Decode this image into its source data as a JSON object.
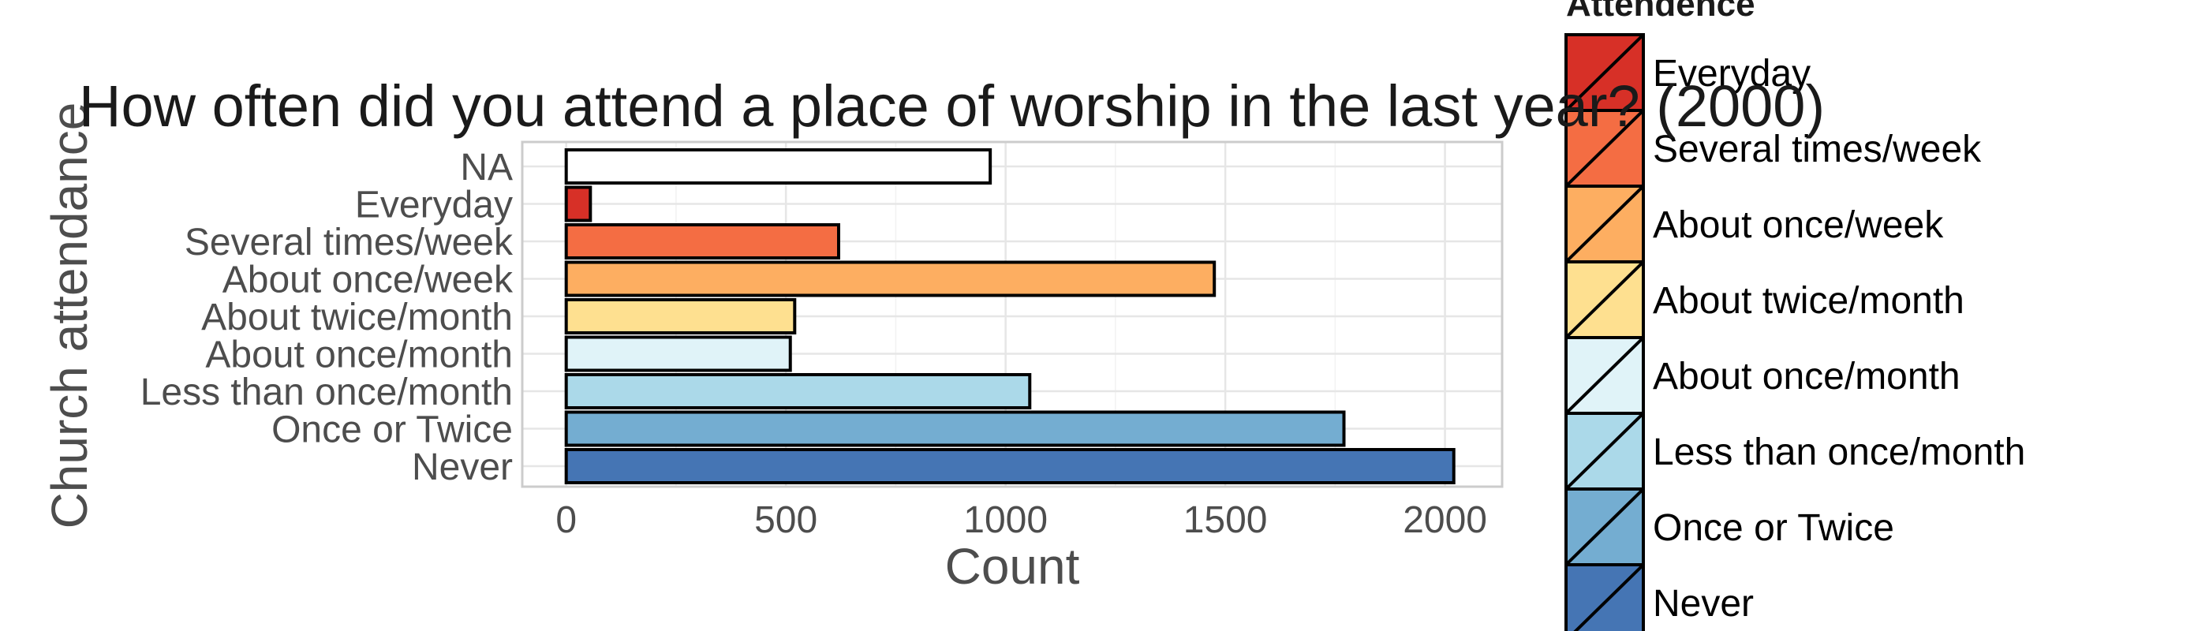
{
  "chart_data": {
    "type": "bar",
    "orientation": "horizontal",
    "title": "How often did you attend a place of worship in the last year? (2000)",
    "xlabel": "Count",
    "ylabel": "Church attendance",
    "categories": [
      "Never",
      "Once or Twice",
      "Less than once/month",
      "About once/month",
      "About twice/month",
      "About once/week",
      "Several times/week",
      "Everyday",
      "NA"
    ],
    "values": [
      2020,
      1770,
      1055,
      510,
      520,
      1475,
      620,
      55,
      965
    ],
    "colors": [
      "#4575b4",
      "#74add1",
      "#abd9e9",
      "#e0f3f8",
      "#fee090",
      "#fdae61",
      "#f46d43",
      "#d73027",
      "#ffffff"
    ],
    "xlim": [
      -100,
      2130
    ],
    "xticks": [
      0,
      500,
      1000,
      1500,
      2000
    ],
    "grid": true,
    "legend": {
      "title": "Attendence",
      "position": "right",
      "entries": [
        {
          "label": "Everyday",
          "color": "#d73027"
        },
        {
          "label": "Several times/week",
          "color": "#f46d43"
        },
        {
          "label": "About once/week",
          "color": "#fdae61"
        },
        {
          "label": "About twice/month",
          "color": "#fee090"
        },
        {
          "label": "About once/month",
          "color": "#e0f3f8"
        },
        {
          "label": "Less than once/month",
          "color": "#abd9e9"
        },
        {
          "label": "Once or Twice",
          "color": "#74add1"
        },
        {
          "label": "Never",
          "color": "#4575b4"
        }
      ]
    }
  }
}
